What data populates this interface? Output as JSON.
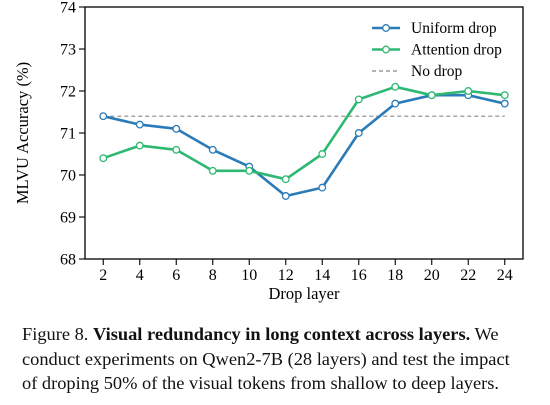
{
  "chart_data": {
    "type": "line",
    "title": "",
    "xlabel": "Drop layer",
    "ylabel": "MLVU Accuracy (%)",
    "x": [
      2,
      4,
      6,
      8,
      10,
      12,
      14,
      16,
      18,
      20,
      22,
      24
    ],
    "xticks": [
      "2",
      "4",
      "6",
      "8",
      "10",
      "12",
      "14",
      "16",
      "18",
      "20",
      "22",
      "24"
    ],
    "yticks": [
      "68",
      "69",
      "70",
      "71",
      "72",
      "73",
      "74"
    ],
    "xlim": [
      1,
      25
    ],
    "ylim": [
      68,
      74
    ],
    "grid": false,
    "legend_position": "top-right",
    "series": [
      {
        "name": "Uniform drop",
        "color": "#2b7bb9",
        "marker": "hollow-circle",
        "values": [
          71.4,
          71.2,
          71.1,
          70.6,
          70.2,
          69.5,
          69.7,
          71.0,
          71.7,
          71.9,
          71.9,
          71.7
        ]
      },
      {
        "name": "Attention drop",
        "color": "#2eb872",
        "marker": "hollow-circle",
        "values": [
          70.4,
          70.7,
          70.6,
          70.1,
          70.1,
          69.9,
          70.5,
          71.8,
          72.1,
          71.9,
          72.0,
          71.9
        ]
      }
    ],
    "reference_lines": [
      {
        "name": "No drop",
        "value": 71.4,
        "color": "#888888",
        "style": "dashed"
      }
    ]
  },
  "caption": {
    "label": "Figure 8.",
    "title": "Visual redundancy in long context across layers.",
    "line1_tail": "We",
    "line2": "conduct experiments on Qwen2-7B (28 layers) and test the impact",
    "line3": "of droping 50% of the visual tokens from shallow to deep layers."
  }
}
